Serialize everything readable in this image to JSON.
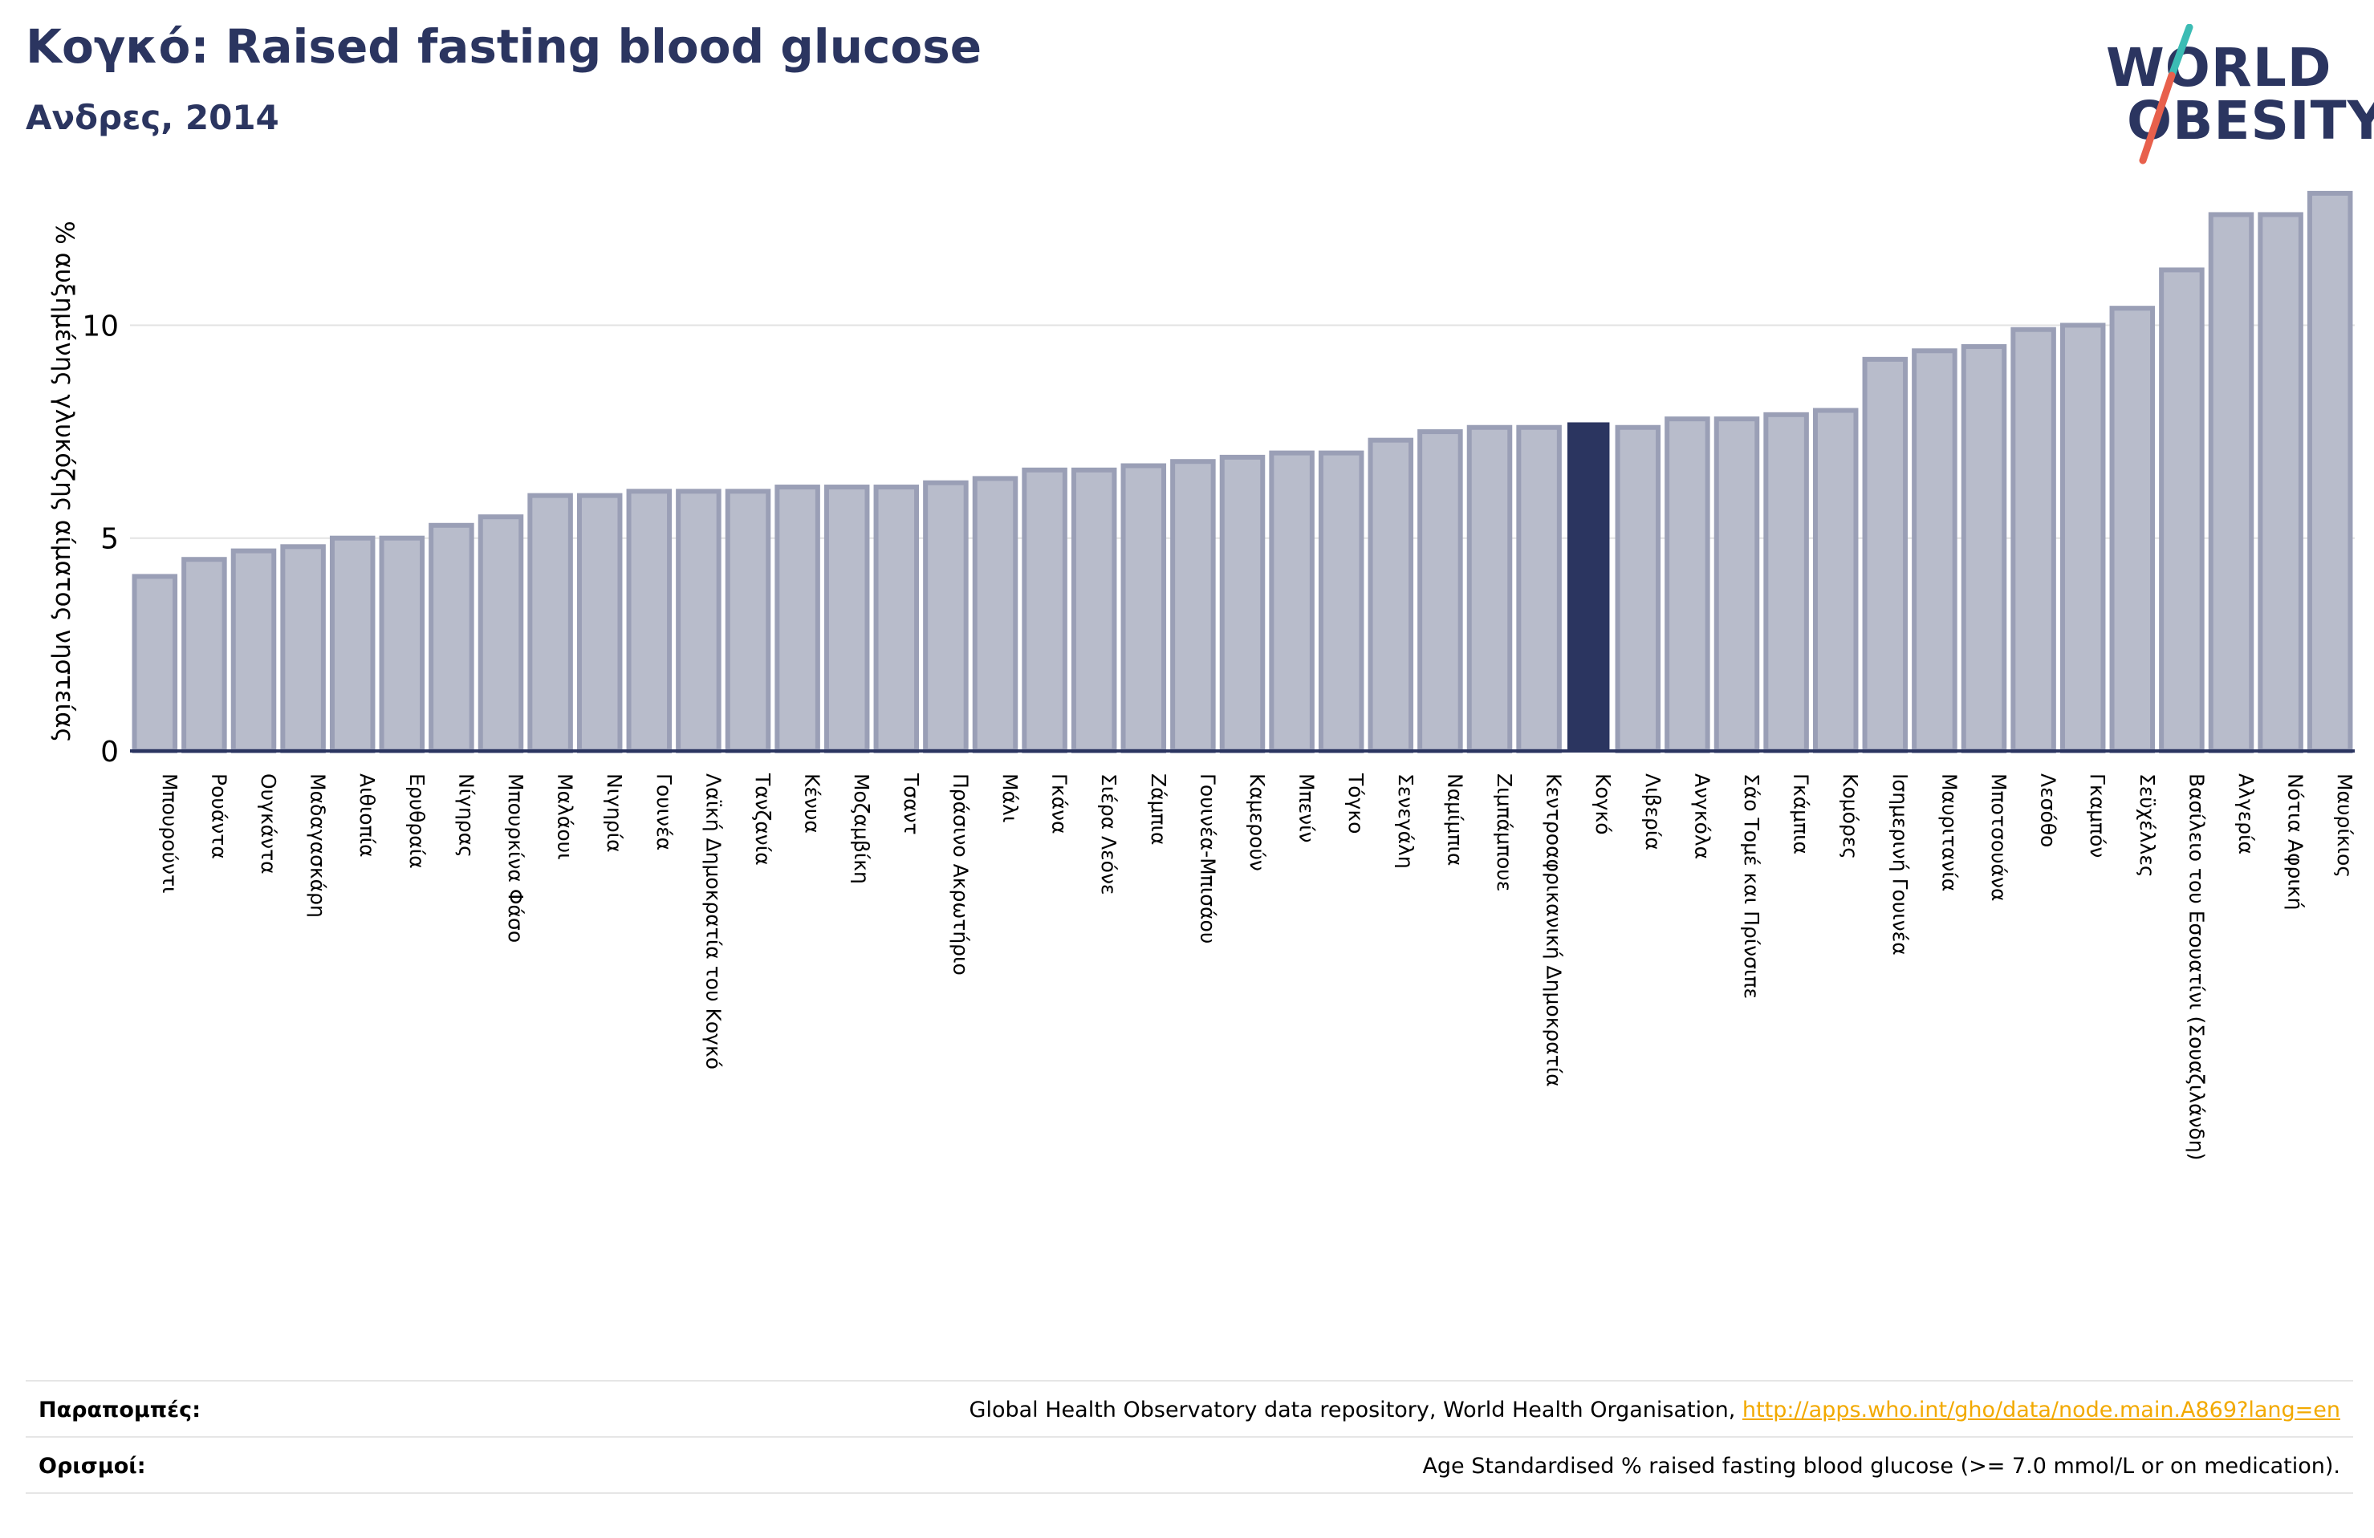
{
  "header": {
    "title": "Κογκό: Raised fasting blood glucose",
    "subtitle": "Ανδρες, 2014"
  },
  "logo": {
    "line1": "WORLD",
    "line2": "OBESITY",
    "text_color": "#2b3560",
    "slash_colors": [
      "#3cbcb4",
      "#e8604c"
    ]
  },
  "chart_data": {
    "type": "bar",
    "title": "Κογκό: Raised fasting blood glucose",
    "subtitle": "Ανδρες, 2014",
    "ylabel": "% αυξημένης γλυκόζης αίματος νηστείας",
    "xlabel": "",
    "ylim": [
      0,
      13.4
    ],
    "yticks": [
      0,
      5,
      10
    ],
    "grid": true,
    "highlight": "Κογκό",
    "colors": {
      "bar": "#b8bccb",
      "bar_edge": "#9a9fb6",
      "highlight": "#2b3560",
      "axis": "#2b3560"
    },
    "categories": [
      "Μπουρούντι",
      "Ρουάντα",
      "Ουγκάντα",
      "Μαδαγασκάρη",
      "Αιθιοπία",
      "Ερυθραία",
      "Νίγηρας",
      "Μπουρκίνα Φάσο",
      "Μαλάουι",
      "Νιγηρία",
      "Γουινέα",
      "Λαϊκή Δημοκρατία του Κογκό",
      "Τανζανία",
      "Κένυα",
      "Μοζαμβίκη",
      "Τσαντ",
      "Πράσινο Ακρωτήριο",
      "Μάλι",
      "Γκάνα",
      "Σιέρα Λεόνε",
      "Ζάμπια",
      "Γουινέα-Μπισάου",
      "Καμερούν",
      "Μπενίν",
      "Τόγκο",
      "Σενεγάλη",
      "Ναμίμπια",
      "Ζιμπάμπουε",
      "Κεντροαφρικανική Δημοκρατία",
      "Κογκό",
      "Λιβερία",
      "Ανγκόλα",
      "Σάο Τομέ και Πρίνσιπε",
      "Γκάμπια",
      "Κομόρες",
      "Ισημερινή Γουινέα",
      "Μαυριτανία",
      "Μποτσουάνα",
      "Λεσόθο",
      "Γκαμπόν",
      "Σεϋχέλλες",
      "Βασίλειο του Εσουατίνι (Σουαζιλάνδη)",
      "Αλγερία",
      "Νότια Αφρική",
      "Μαυρίκιος"
    ],
    "values": [
      4.1,
      4.5,
      4.7,
      4.8,
      5.0,
      5.0,
      5.3,
      5.5,
      6.0,
      6.0,
      6.1,
      6.1,
      6.1,
      6.2,
      6.2,
      6.2,
      6.3,
      6.4,
      6.6,
      6.6,
      6.7,
      6.8,
      6.9,
      7.0,
      7.0,
      7.3,
      7.5,
      7.6,
      7.6,
      7.7,
      7.6,
      7.8,
      7.8,
      7.9,
      8.0,
      9.2,
      9.4,
      9.5,
      9.9,
      10.0,
      10.4,
      11.3,
      12.6,
      12.6,
      13.1
    ]
  },
  "footer": {
    "references_label": "Παραπομπές:",
    "references_text": "Global Health Observatory data repository, World Health Organisation, ",
    "references_link": "http://apps.who.int/gho/data/node.main.A869?lang=en",
    "definitions_label": "Ορισμοί:",
    "definitions_text": "Age Standardised % raised fasting blood glucose (>= 7.0 mmol/L or on medication)."
  }
}
